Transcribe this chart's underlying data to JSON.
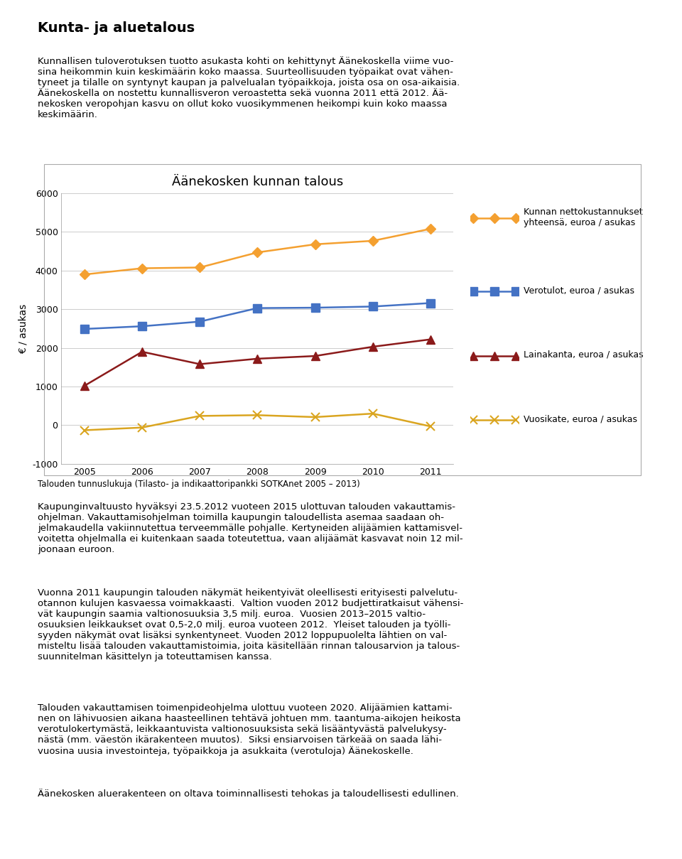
{
  "title": "Äänekosken kunnan talous",
  "ylabel": "€ / asukas",
  "years": [
    2005,
    2006,
    2007,
    2008,
    2009,
    2010,
    2011
  ],
  "series": {
    "nettokustannukset": {
      "label": "Kunnan nettokustannukset\nyhteensä, euroa / asukas",
      "color": "#F4A030",
      "marker": "D",
      "markersize": 7,
      "values": [
        3900,
        4060,
        4080,
        4470,
        4680,
        4770,
        5080
      ]
    },
    "verotulot": {
      "label": "Verotulot, euroa / asukas",
      "color": "#4472C4",
      "marker": "s",
      "markersize": 8,
      "values": [
        2490,
        2560,
        2680,
        3030,
        3040,
        3070,
        3160
      ]
    },
    "lainakanta": {
      "label": "Lainakanta, euroa / asukas",
      "color": "#8B1A1A",
      "marker": "^",
      "markersize": 8,
      "values": [
        1020,
        1900,
        1580,
        1720,
        1790,
        2030,
        2220
      ]
    },
    "vuosikate": {
      "label": "Vuosikate, euroa / asukas",
      "color": "#DAA520",
      "marker": "x",
      "markersize": 8,
      "values": [
        -130,
        -60,
        240,
        260,
        210,
        300,
        -30
      ]
    }
  },
  "ylim": [
    -1000,
    6000
  ],
  "yticks": [
    -1000,
    0,
    1000,
    2000,
    3000,
    4000,
    5000,
    6000
  ],
  "caption": "Talouden tunnuslukuja (Tilasto- ja indikaattoripankki SOTKAnet 2005 – 2013)",
  "heading": "Kunta- ja aluetalous",
  "para1": "Kunnallisen tuloverotuksen tuotto asukasta kohti on kehittynyt Äänekoskella viime vuo-\nsina heikommin kuin keskimäärin koko maassa. Suurteollisuuden työpaikat ovat vähen-\ntyneet ja tilalle on syntynyt kaupan ja palvelualan työpaikkoja, joista osa on osa-aikaisia.\nÄänekoskella on nostettu kunnallisveron veroastetta sekä vuonna 2011 että 2012. Ää-\nnekosken veropohjan kasvu on ollut koko vuosikymmenen heikompi kuin koko maassa\nkeskimäärin.",
  "para2": "Kaupunginvaltuusto hyväksyi 23.5.2012 vuoteen 2015 ulottuvan talouden vakauttamis-\nohjelman. Vakauttamisohjelman toimilla kaupungin taloudellista asemaa saadaan oh-\njelmakaudella vakiinnutettua terveemmälle pohjalle. Kertyneiden alijäämien kattamisvel-\nvoitetta ohjelmalla ei kuitenkaan saada toteutettua, vaan alijäämät kasvavat noin 12 mil-\njoonaan euroon.",
  "para3": "Vuonna 2011 kaupungin talouden näkymät heikentyivät oleellisesti erityisesti palvelutu-\notannon kulujen kasvaessa voimakkaasti.  Valtion vuoden 2012 budjettiratkaisut vähensi-\nvät kaupungin saamia valtionosuuksia 3,5 milj. euroa.  Vuosien 2013–2015 valtio-\nosuuksien leikkaukset ovat 0,5-2,0 milj. euroa vuoteen 2012.  Yleiset talouden ja työlli-\nsyyden näkymät ovat lisäksi synkentyneet. Vuoden 2012 loppupuolelta lähtien on val-\nmisteltu lisää talouden vakauttamistoimia, joita käsitellään rinnan talousarvion ja talous-\nsuunnitelman käsittelyn ja toteuttamisen kanssa.",
  "para4": "Talouden vakauttamisen toimenpideohjelma ulottuu vuoteen 2020. Alijäämien kattami-\nnen on lähivuosien aikana haasteellinen tehtävä johtuen mm. taantuma-aikojen heikosta\nverotulokertymästä, leikkaantuvista valtionosuuksista sekä lisääntyvästä palvelukysy-\nnästä (mm. väestön ikärakenteen muutos).  Siksi ensiarvoisen tärkeää on saada lähi-\nvuosina uusia investointeja, työpaikkoja ja asukkaita (verotuloja) Äänekoskelle.",
  "para5": "Äänekosken aluerakenteen on oltava toiminnallisesti tehokas ja taloudellisesti edullinen.",
  "background_color": "#FFFFFF",
  "grid_color": "#CCCCCC",
  "linewidth": 1.8,
  "title_fontsize": 13,
  "tick_fontsize": 9,
  "legend_fontsize": 9,
  "caption_fontsize": 8.5,
  "body_fontsize": 9.5,
  "heading_fontsize": 14
}
